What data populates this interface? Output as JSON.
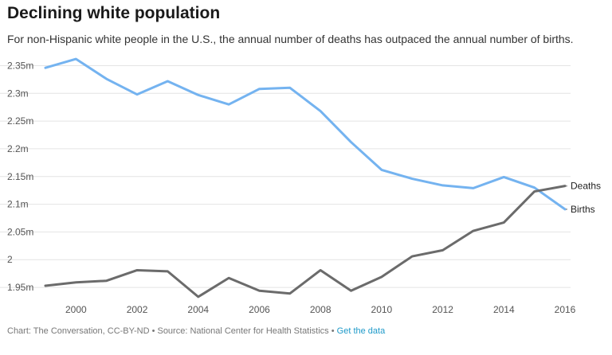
{
  "chart_data": {
    "type": "line",
    "title": "Declining white population",
    "subtitle": "For non-Hispanic white people in the U.S., the annual number of deaths has outpaced the annual number of births.",
    "x": [
      1999,
      2000,
      2001,
      2002,
      2003,
      2004,
      2005,
      2006,
      2007,
      2008,
      2009,
      2010,
      2011,
      2012,
      2013,
      2014,
      2015,
      2016
    ],
    "xlim": [
      1999,
      2016
    ],
    "x_ticks": [
      2000,
      2002,
      2004,
      2006,
      2008,
      2010,
      2012,
      2014,
      2016
    ],
    "ylim": [
      1.93,
      2.365
    ],
    "y_ticks": [
      {
        "value": 1.95,
        "label": "1.95m"
      },
      {
        "value": 2.0,
        "label": "2"
      },
      {
        "value": 2.05,
        "label": "2.05m"
      },
      {
        "value": 2.1,
        "label": "2.1m"
      },
      {
        "value": 2.15,
        "label": "2.15m"
      },
      {
        "value": 2.2,
        "label": "2.2m"
      },
      {
        "value": 2.25,
        "label": "2.25m"
      },
      {
        "value": 2.3,
        "label": "2.3m"
      },
      {
        "value": 2.35,
        "label": "2.35m"
      }
    ],
    "grid": true,
    "series": [
      {
        "name": "Births",
        "color": "#74b3f0",
        "values": [
          2.346,
          2.362,
          2.326,
          2.298,
          2.322,
          2.297,
          2.28,
          2.308,
          2.31,
          2.268,
          2.212,
          2.162,
          2.146,
          2.134,
          2.129,
          2.149,
          2.13,
          2.091
        ]
      },
      {
        "name": "Deaths",
        "color": "#6b6b6b",
        "values": [
          1.953,
          1.959,
          1.962,
          1.981,
          1.979,
          1.933,
          1.967,
          1.944,
          1.939,
          1.981,
          1.944,
          1.969,
          2.006,
          2.017,
          2.052,
          2.067,
          2.123,
          2.133
        ]
      }
    ]
  },
  "footer": {
    "credit": "Chart: The Conversation, CC-BY-ND • Source: National Center for Health Statistics •",
    "link": "Get the data"
  }
}
